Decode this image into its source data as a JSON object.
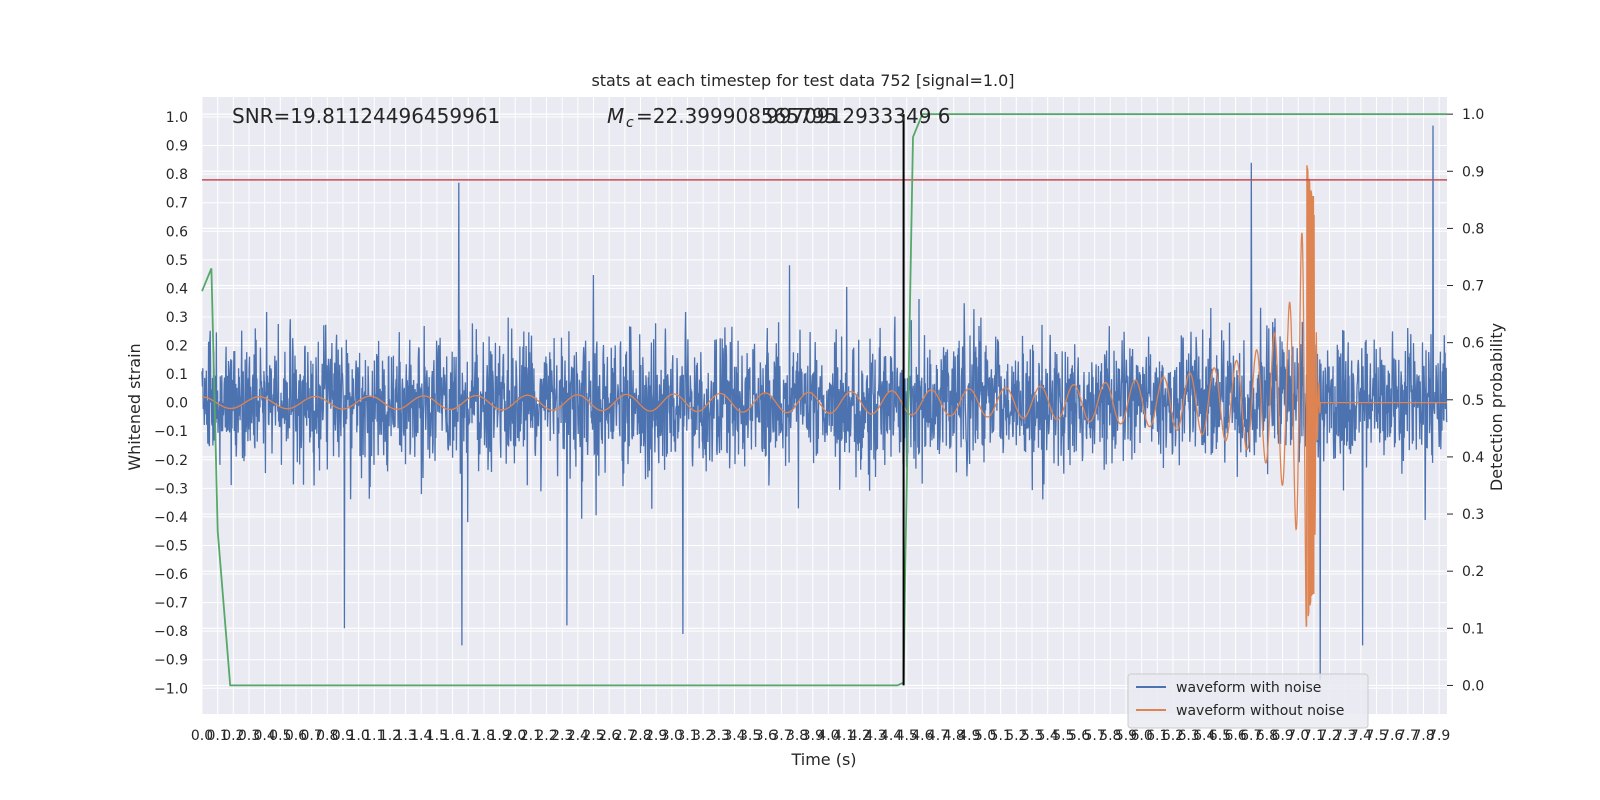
{
  "chart_data": {
    "type": "line",
    "title": "stats at each timestep for test data 752 [signal=1.0]",
    "xlabel": "Time (s)",
    "ylabel_left": "Whitened strain",
    "ylabel_right": "Detection probability",
    "xlim": [
      0,
      7.95
    ],
    "ylim_left": [
      -1.09,
      1.07
    ],
    "ylim_right": [
      -0.05,
      1.03
    ],
    "x_ticks": [
      "0.0",
      "0.1",
      "0.2",
      "0.3",
      "0.4",
      "0.5",
      "0.6",
      "0.7",
      "0.8",
      "0.9",
      "1.0",
      "1.1",
      "1.2",
      "1.3",
      "1.4",
      "1.5",
      "1.6",
      "1.7",
      "1.8",
      "1.9",
      "2.0",
      "2.1",
      "2.2",
      "2.3",
      "2.4",
      "2.5",
      "2.6",
      "2.7",
      "2.8",
      "2.9",
      "3.0",
      "3.1",
      "3.2",
      "3.3",
      "3.4",
      "3.5",
      "3.6",
      "3.7",
      "3.8",
      "3.9",
      "4.0",
      "4.1",
      "4.2",
      "4.3",
      "4.4",
      "4.5",
      "4.6",
      "4.7",
      "4.8",
      "4.9",
      "5.0",
      "5.1",
      "5.2",
      "5.3",
      "5.4",
      "5.5",
      "5.6",
      "5.7",
      "5.8",
      "5.9",
      "6.0",
      "6.1",
      "6.2",
      "6.3",
      "6.4",
      "6.5",
      "6.6",
      "6.7",
      "6.8",
      "6.9",
      "7.0",
      "7.1",
      "7.2",
      "7.3",
      "7.4",
      "7.5",
      "7.6",
      "7.7",
      "7.8",
      "7.9"
    ],
    "y_ticks_left": [
      "1.0",
      "0.9",
      "0.8",
      "0.7",
      "0.6",
      "0.5",
      "0.4",
      "0.3",
      "0.2",
      "0.1",
      "0.0",
      "−0.1",
      "−0.2",
      "−0.3",
      "−0.4",
      "−0.5",
      "−0.6",
      "−0.7",
      "−0.8",
      "−0.9",
      "−1.0"
    ],
    "y_ticks_right": [
      "1.0",
      "0.9",
      "0.8",
      "0.7",
      "0.6",
      "0.5",
      "0.4",
      "0.3",
      "0.2",
      "0.1",
      "0.0"
    ],
    "annotations": {
      "snr": "SNR=19.81124496459961",
      "mc_prefix": "M",
      "mc_sub": "c",
      "mc_value": "=22.399908565795",
      "overlap_value": "9970912933349 6"
    },
    "threshold_line": {
      "axis": "left",
      "y": 0.78,
      "color": "#c44e52"
    },
    "merger_vline": {
      "x": 4.48,
      "color": "#000000"
    },
    "grid": true,
    "legend_position": "lower-right",
    "series": [
      {
        "name": "waveform with noise",
        "color": "#4c72b0",
        "axis": "left",
        "kind": "noise",
        "std": 0.2
      },
      {
        "name": "waveform without noise",
        "color": "#dd8452",
        "axis": "left",
        "kind": "chirp",
        "amplitude_start": 0.02,
        "peak": 0.85,
        "trough": -0.79,
        "merger_time": 7.1
      },
      {
        "color": "#55a868",
        "axis": "right",
        "x": [
          0.0,
          0.06,
          0.1,
          0.18,
          4.44,
          4.48,
          4.49,
          4.54,
          4.6,
          7.95
        ],
        "values": [
          0.69,
          0.73,
          0.27,
          0.0,
          0.0,
          0.005,
          0.2,
          0.96,
          1.0,
          1.0
        ]
      }
    ],
    "peak_spikes": [
      {
        "x": 1.64,
        "y": 0.77
      },
      {
        "x": 1.66,
        "y": -0.85
      },
      {
        "x": 6.7,
        "y": 0.84
      },
      {
        "x": 7.14,
        "y": -0.97
      },
      {
        "x": 7.86,
        "y": 0.97
      },
      {
        "x": 3.07,
        "y": -0.81
      },
      {
        "x": 0.91,
        "y": -0.79
      },
      {
        "x": 2.33,
        "y": -0.78
      },
      {
        "x": 7.41,
        "y": -0.85
      }
    ]
  }
}
